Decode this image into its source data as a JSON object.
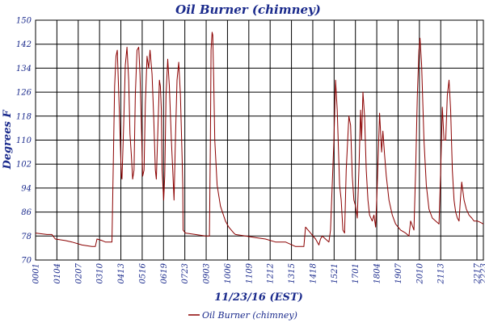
{
  "chart_data": {
    "type": "line",
    "title": "Oil Burner (chimney)",
    "xlabel": "11/23/16 (EST)",
    "ylabel": "Degrees F",
    "ylim": [
      70,
      150
    ],
    "yticks": [
      70,
      78,
      86,
      94,
      102,
      110,
      118,
      126,
      134,
      142,
      150
    ],
    "x_range": [
      "00:01",
      "22:23"
    ],
    "xticks": [
      "0001",
      "0104",
      "0207",
      "0310",
      "0413",
      "0516",
      "0619",
      "0723",
      "0903",
      "1006",
      "1109",
      "1212",
      "1315",
      "1418",
      "1521",
      "1701",
      "1804",
      "1907",
      "2010",
      "2113",
      "2217",
      "2223"
    ],
    "grid": true,
    "legend_position": "bottom-left",
    "series": [
      {
        "name": "Oil Burner (chimney)",
        "color": "#8b0000",
        "points": [
          [
            "00:01",
            79
          ],
          [
            "00:35",
            78.5
          ],
          [
            "00:50",
            78.5
          ],
          [
            "01:00",
            77
          ],
          [
            "01:30",
            76.5
          ],
          [
            "01:50",
            76
          ],
          [
            "02:20",
            75
          ],
          [
            "02:50",
            74.5
          ],
          [
            "03:00",
            74.5
          ],
          [
            "03:05",
            77
          ],
          [
            "03:20",
            76.5
          ],
          [
            "03:30",
            76
          ],
          [
            "03:45",
            76
          ],
          [
            "03:50",
            76
          ],
          [
            "03:58",
            128
          ],
          [
            "04:02",
            138
          ],
          [
            "04:06",
            140
          ],
          [
            "04:12",
            120
          ],
          [
            "04:18",
            98
          ],
          [
            "04:20",
            97
          ],
          [
            "04:25",
            115
          ],
          [
            "04:30",
            135
          ],
          [
            "04:35",
            141
          ],
          [
            "04:40",
            130
          ],
          [
            "04:44",
            112
          ],
          [
            "04:48",
            105
          ],
          [
            "04:52",
            97
          ],
          [
            "04:56",
            100
          ],
          [
            "05:00",
            125
          ],
          [
            "05:05",
            140
          ],
          [
            "05:10",
            141
          ],
          [
            "05:14",
            132
          ],
          [
            "05:18",
            115
          ],
          [
            "05:22",
            98
          ],
          [
            "05:26",
            100
          ],
          [
            "05:30",
            122
          ],
          [
            "05:35",
            138
          ],
          [
            "05:40",
            134
          ],
          [
            "05:44",
            140
          ],
          [
            "05:50",
            132
          ],
          [
            "05:55",
            118
          ],
          [
            "06:00",
            100
          ],
          [
            "06:03",
            97
          ],
          [
            "06:08",
            115
          ],
          [
            "06:12",
            130
          ],
          [
            "06:15",
            128
          ],
          [
            "06:18",
            120
          ],
          [
            "06:20",
            100
          ],
          [
            "06:25",
            90
          ],
          [
            "06:28",
            98
          ],
          [
            "06:32",
            125
          ],
          [
            "06:37",
            137
          ],
          [
            "06:42",
            128
          ],
          [
            "06:48",
            110
          ],
          [
            "06:52",
            100
          ],
          [
            "06:56",
            90
          ],
          [
            "07:00",
            110
          ],
          [
            "07:05",
            130
          ],
          [
            "07:10",
            136
          ],
          [
            "07:15",
            125
          ],
          [
            "07:20",
            105
          ],
          [
            "07:22",
            95
          ],
          [
            "07:23",
            80
          ],
          [
            "07:30",
            79
          ],
          [
            "08:00",
            78.5
          ],
          [
            "08:30",
            78
          ],
          [
            "08:42",
            78
          ],
          [
            "08:45",
            110
          ],
          [
            "08:47",
            140
          ],
          [
            "08:50",
            146
          ],
          [
            "08:52",
            145
          ],
          [
            "08:55",
            130
          ],
          [
            "08:58",
            110
          ],
          [
            "09:05",
            95
          ],
          [
            "09:15",
            88
          ],
          [
            "09:30",
            83
          ],
          [
            "09:40",
            81
          ],
          [
            "09:55",
            79
          ],
          [
            "10:00",
            78.5
          ],
          [
            "10:30",
            78
          ],
          [
            "11:00",
            77.5
          ],
          [
            "11:30",
            77
          ],
          [
            "12:00",
            76
          ],
          [
            "12:30",
            76
          ],
          [
            "12:50",
            75
          ],
          [
            "13:00",
            74.5
          ],
          [
            "13:25",
            74.5
          ],
          [
            "13:30",
            81
          ],
          [
            "13:45",
            79
          ],
          [
            "14:00",
            77
          ],
          [
            "14:10",
            75
          ],
          [
            "14:15",
            77
          ],
          [
            "14:20",
            78
          ],
          [
            "14:30",
            77
          ],
          [
            "14:40",
            76
          ],
          [
            "14:45",
            80
          ],
          [
            "14:55",
            110
          ],
          [
            "15:00",
            130
          ],
          [
            "15:05",
            120
          ],
          [
            "15:12",
            95
          ],
          [
            "15:17",
            90
          ],
          [
            "15:22",
            80
          ],
          [
            "15:27",
            79
          ],
          [
            "15:32",
            100
          ],
          [
            "15:40",
            118
          ],
          [
            "15:45",
            115
          ],
          [
            "15:50",
            98
          ],
          [
            "15:55",
            90
          ],
          [
            "16:00",
            88
          ],
          [
            "16:05",
            84
          ],
          [
            "16:10",
            100
          ],
          [
            "16:15",
            120
          ],
          [
            "16:18",
            110
          ],
          [
            "16:22",
            126
          ],
          [
            "16:27",
            118
          ],
          [
            "16:32",
            100
          ],
          [
            "16:37",
            90
          ],
          [
            "16:42",
            85
          ],
          [
            "16:50",
            83
          ],
          [
            "16:55",
            85
          ],
          [
            "17:00",
            81
          ],
          [
            "17:05",
            95
          ],
          [
            "17:12",
            119
          ],
          [
            "17:18",
            106
          ],
          [
            "17:22",
            113
          ],
          [
            "17:27",
            105
          ],
          [
            "17:32",
            98
          ],
          [
            "17:40",
            90
          ],
          [
            "17:50",
            85
          ],
          [
            "18:00",
            82
          ],
          [
            "18:15",
            80
          ],
          [
            "18:30",
            79
          ],
          [
            "18:40",
            78
          ],
          [
            "18:45",
            83
          ],
          [
            "18:55",
            80
          ],
          [
            "19:00",
            100
          ],
          [
            "19:05",
            125
          ],
          [
            "19:10",
            140
          ],
          [
            "19:13",
            144
          ],
          [
            "19:18",
            135
          ],
          [
            "19:25",
            110
          ],
          [
            "19:32",
            95
          ],
          [
            "19:40",
            87
          ],
          [
            "19:50",
            84
          ],
          [
            "20:00",
            83
          ],
          [
            "20:10",
            82
          ],
          [
            "20:15",
            100
          ],
          [
            "20:20",
            121
          ],
          [
            "20:25",
            110
          ],
          [
            "20:30",
            110
          ],
          [
            "20:35",
            125
          ],
          [
            "20:40",
            130
          ],
          [
            "20:45",
            120
          ],
          [
            "20:50",
            100
          ],
          [
            "20:55",
            90
          ],
          [
            "21:00",
            86
          ],
          [
            "21:05",
            84
          ],
          [
            "21:10",
            83
          ],
          [
            "21:14",
            90
          ],
          [
            "21:18",
            96
          ],
          [
            "21:25",
            90
          ],
          [
            "21:32",
            87
          ],
          [
            "21:40",
            85
          ],
          [
            "21:48",
            84
          ],
          [
            "21:55",
            83
          ],
          [
            "22:05",
            83
          ],
          [
            "22:15",
            82.5
          ],
          [
            "22:23",
            82
          ]
        ]
      }
    ]
  }
}
